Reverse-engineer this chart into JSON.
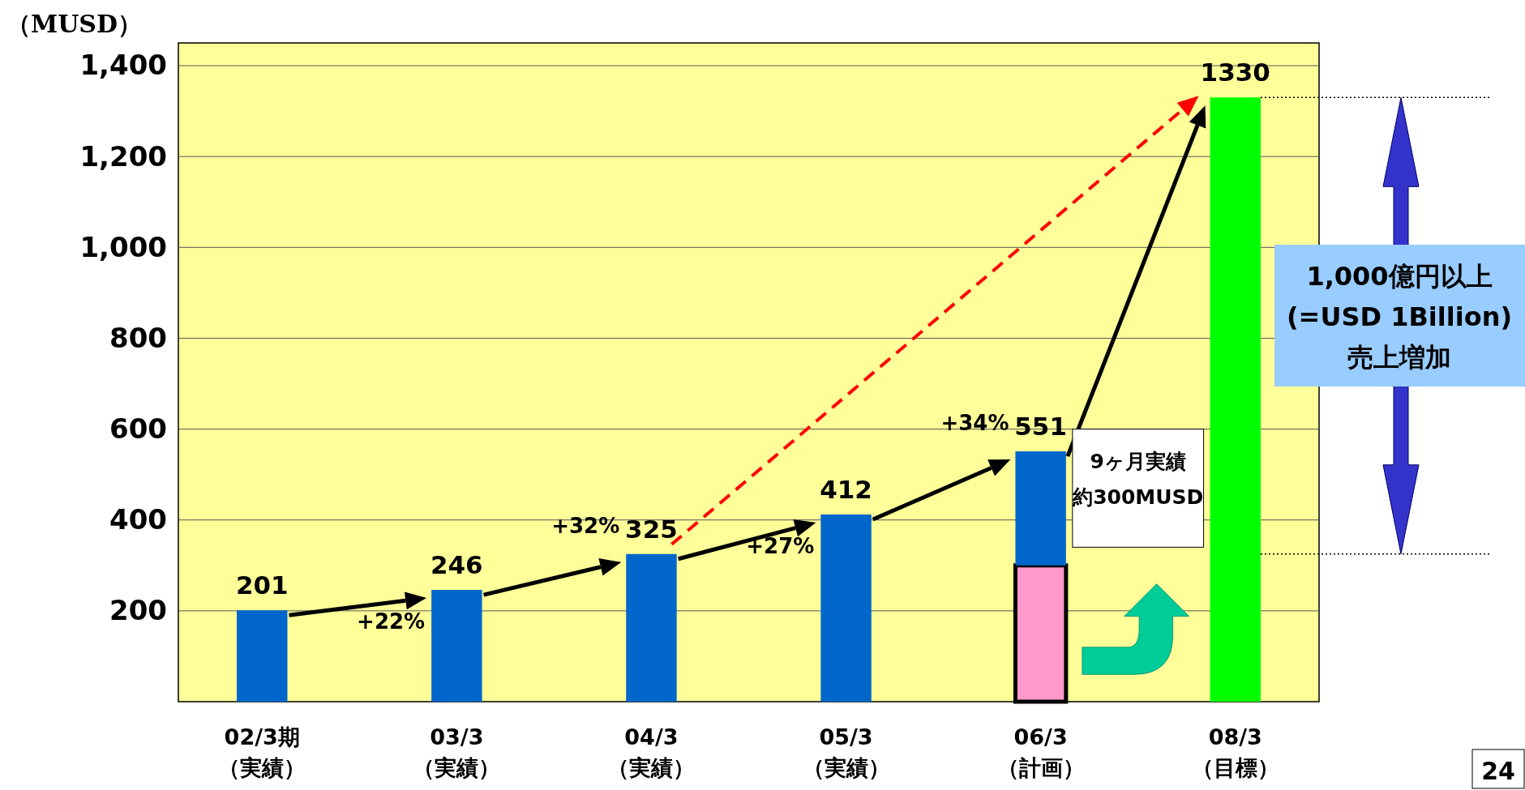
{
  "chart_data": {
    "type": "bar",
    "ylabel": "（MUSD）",
    "categories": [
      "02/3期（実績）",
      "03/3（実績）",
      "04/3（実績）",
      "05/3（実績）",
      "06/3（計画）",
      "08/3（目標）"
    ],
    "stacked": true,
    "series": [
      {
        "color": "#ff99cc",
        "values": [
          null,
          null,
          null,
          null,
          300,
          null
        ]
      },
      {
        "color": "#0066cc",
        "values": [
          201,
          246,
          325,
          412,
          251,
          null
        ]
      },
      {
        "color": "#00ff00",
        "values": [
          null,
          null,
          null,
          null,
          null,
          1330
        ]
      }
    ],
    "totals": [
      "201",
      "246",
      "325",
      "412",
      "551",
      "1330"
    ],
    "ylim": [
      0,
      1450
    ],
    "yticks": [
      200,
      400,
      600,
      800,
      {
        "value": 1000,
        "label": "1,000"
      },
      {
        "value": 1200,
        "label": "1,200"
      },
      {
        "value": 1400,
        "label": "1,400"
      }
    ],
    "grid": "y",
    "annotations": [
      {
        "text": "+22%",
        "x": "03/3（実績）",
        "y": 246
      },
      {
        "text": "+32%",
        "x": "04/3（実績）",
        "y": 325
      },
      {
        "text": "+27%",
        "x": "05/3（実績）",
        "y": 412
      },
      {
        "text": "+34%",
        "x": "06/3（計画）",
        "y": 551
      },
      "9ヶ月実績約300MUSD",
      "1,000億円以上\n(=USD 1Billion)\n売上増加",
      "24"
    ]
  }
}
